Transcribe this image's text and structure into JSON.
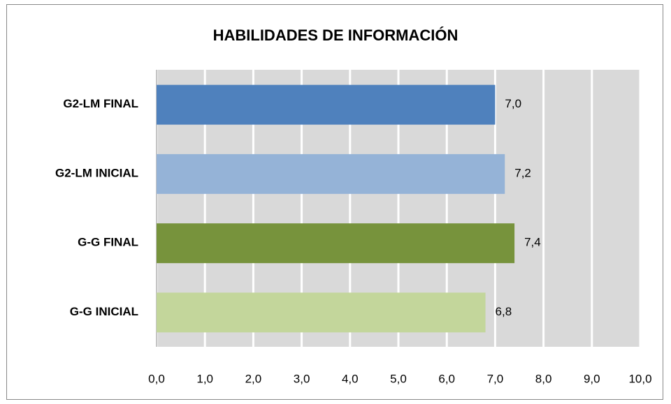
{
  "chart_data": {
    "type": "barh",
    "title": "HABILIDADES DE INFORMACIÓN",
    "categories": [
      "G2-LM FINAL",
      "G2-LM INICIAL",
      "G-G FINAL",
      "G-G INICIAL"
    ],
    "values": [
      7.0,
      7.2,
      7.4,
      6.8
    ],
    "value_labels": [
      "7,0",
      "7,2",
      "7,4",
      "6,8"
    ],
    "colors": [
      "#4f81bd",
      "#95b3d7",
      "#77933c",
      "#c3d69b"
    ],
    "xlim": [
      0,
      10
    ],
    "xticks": [
      {
        "value": 0,
        "label": "0,0"
      },
      {
        "value": 1,
        "label": "1,0"
      },
      {
        "value": 2,
        "label": "2,0"
      },
      {
        "value": 3,
        "label": "3,0"
      },
      {
        "value": 4,
        "label": "4,0"
      },
      {
        "value": 5,
        "label": "5,0"
      },
      {
        "value": 6,
        "label": "6,0"
      },
      {
        "value": 7,
        "label": "7,0"
      },
      {
        "value": 8,
        "label": "8,0"
      },
      {
        "value": 9,
        "label": "9,0"
      },
      {
        "value": 10,
        "label": "10,0"
      }
    ],
    "grid": true
  }
}
